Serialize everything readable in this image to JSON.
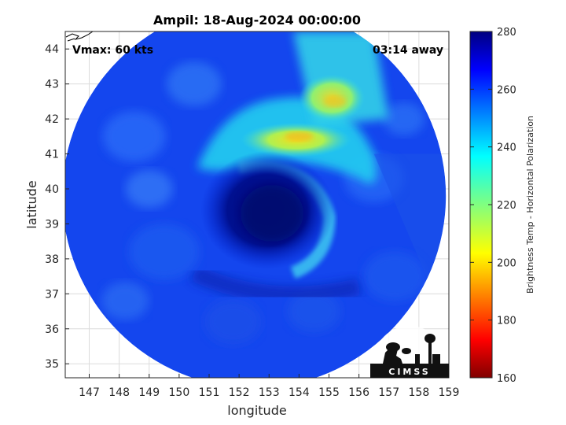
{
  "chart_data": {
    "type": "heatmap",
    "title": "Ampil: 18-Aug-2024 00:00:00",
    "xlabel": "longitude",
    "ylabel": "latitude",
    "xlim": [
      146.2,
      159
    ],
    "ylim": [
      34.6,
      44.5
    ],
    "xticks": [
      147,
      148,
      149,
      150,
      151,
      152,
      153,
      154,
      155,
      156,
      157,
      158,
      159
    ],
    "yticks": [
      35,
      36,
      37,
      38,
      39,
      40,
      41,
      42,
      43,
      44
    ],
    "grid": true,
    "annotations": {
      "left": "Vmax: 60 kts",
      "right": "03:14 away"
    },
    "colorbar": {
      "label": "Brightness Temp - Horizontal Polarization",
      "range": [
        160,
        280
      ],
      "ticks": [
        160,
        180,
        200,
        220,
        240,
        260,
        280
      ],
      "colormap": "jet"
    },
    "storm_center": {
      "lon": 153.1,
      "lat": 39.3
    },
    "swath_center": {
      "lon": 152.5,
      "lat": 39.8
    },
    "swath_radius_deg": 6.4,
    "field_regions": [
      {
        "feature": "background",
        "temp_k": 262
      },
      {
        "feature": "cold-core eye region",
        "lon": 152.8,
        "lat": 39.4,
        "temp_k": 276
      },
      {
        "feature": "warm band north",
        "lon": 153.8,
        "lat": 41.5,
        "temp_k": 208
      },
      {
        "feature": "warm band northeast",
        "lon": 155,
        "lat": 42.6,
        "temp_k": 215
      },
      {
        "feature": "cyan curved band",
        "lon": 154.5,
        "lat": 39.5,
        "temp_k": 238
      }
    ]
  },
  "logo": {
    "text": "CIMSS"
  }
}
